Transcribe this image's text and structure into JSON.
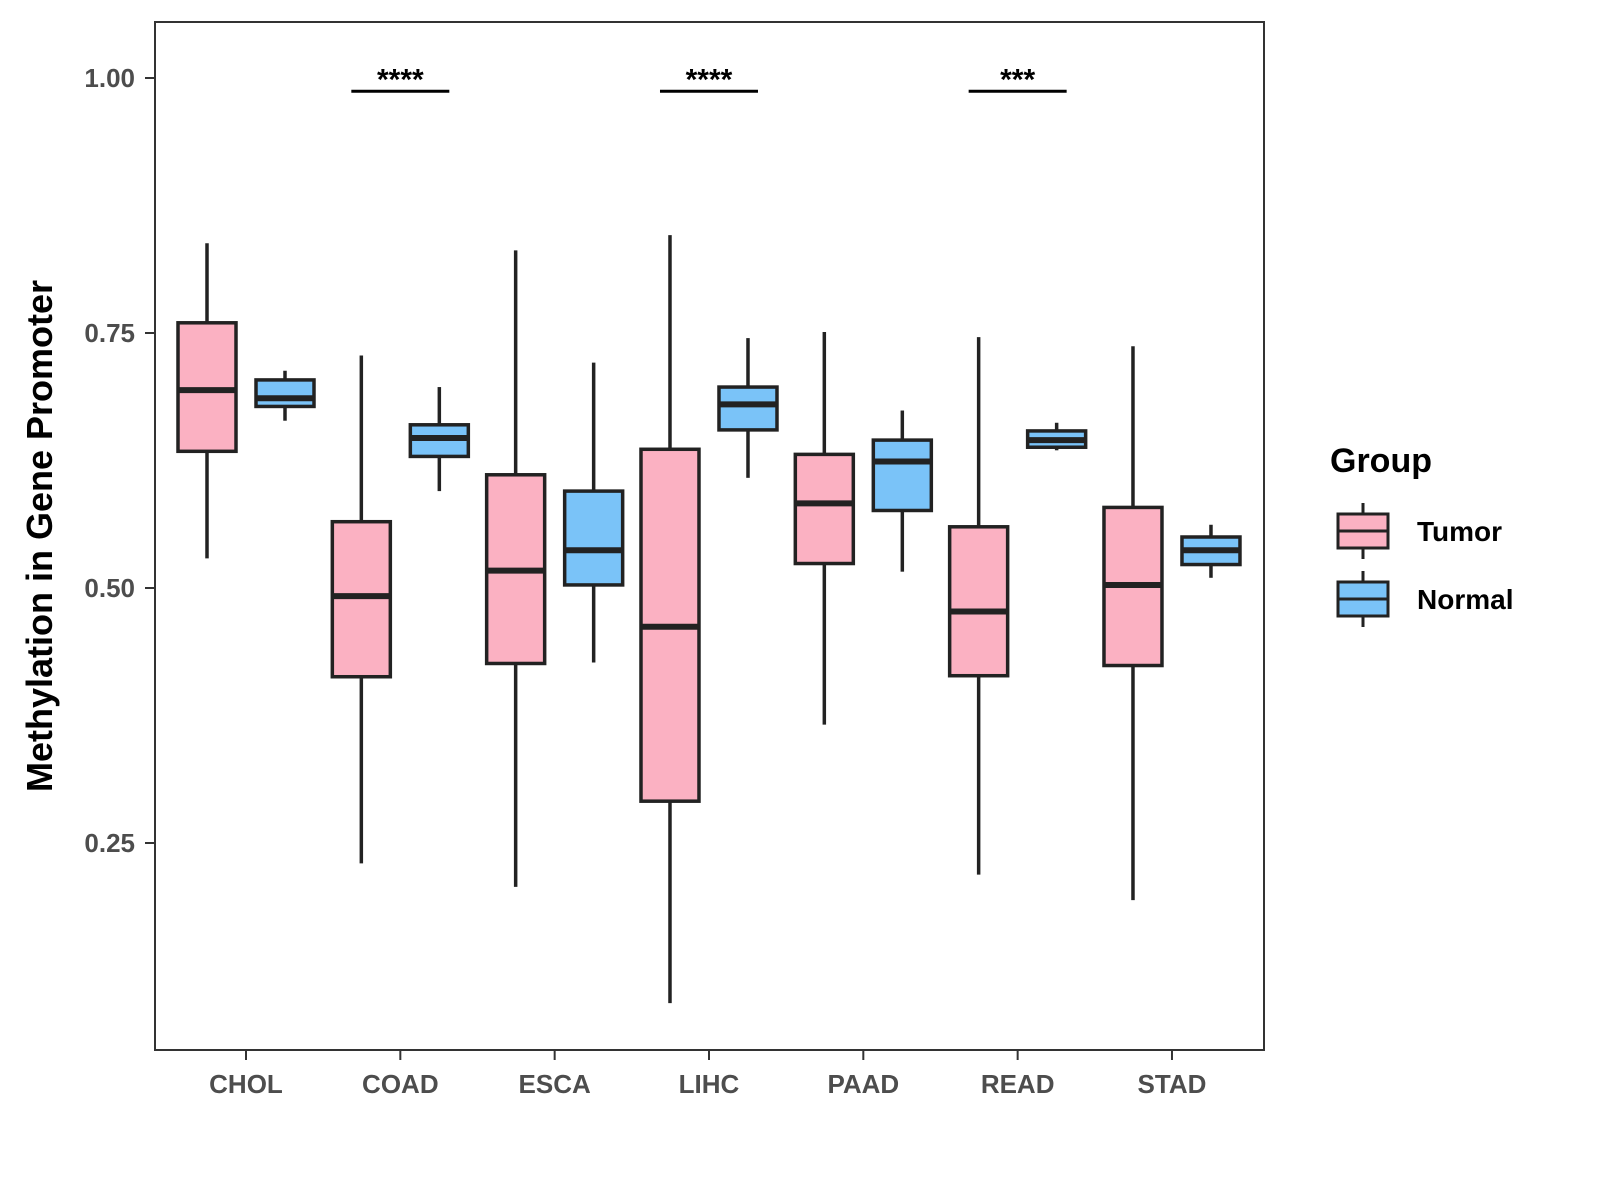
{
  "chart_data": {
    "type": "boxplot",
    "title": "",
    "xlabel": "",
    "ylabel": "Methylation in Gene Promoter",
    "ylim": [
      0.047,
      1.055
    ],
    "yticks": [
      "0.25",
      "0.50",
      "0.75",
      "1.00"
    ],
    "ytick_values": [
      0.25,
      0.5,
      0.75,
      1.0
    ],
    "grid": false,
    "categories": [
      "CHOL",
      "COAD",
      "ESCA",
      "LIHC",
      "PAAD",
      "READ",
      "STAD"
    ],
    "legend": {
      "title": "Group",
      "placement": "right",
      "entries": [
        "Tumor",
        "Normal"
      ]
    },
    "colors": {
      "Tumor": "#FBB1C2",
      "Normal": "#7AC3F8"
    },
    "series": [
      {
        "name": "Tumor",
        "boxes": [
          {
            "whisker_high": 0.838,
            "q3": 0.76,
            "median": 0.694,
            "q1": 0.634,
            "whisker_low": 0.529
          },
          {
            "whisker_high": 0.728,
            "q3": 0.565,
            "median": 0.492,
            "q1": 0.413,
            "whisker_low": 0.23
          },
          {
            "whisker_high": 0.831,
            "q3": 0.611,
            "median": 0.517,
            "q1": 0.426,
            "whisker_low": 0.207
          },
          {
            "whisker_high": 0.846,
            "q3": 0.636,
            "median": 0.462,
            "q1": 0.291,
            "whisker_low": 0.093
          },
          {
            "whisker_high": 0.751,
            "q3": 0.631,
            "median": 0.583,
            "q1": 0.524,
            "whisker_low": 0.366
          },
          {
            "whisker_high": 0.746,
            "q3": 0.56,
            "median": 0.477,
            "q1": 0.414,
            "whisker_low": 0.219
          },
          {
            "whisker_high": 0.737,
            "q3": 0.579,
            "median": 0.503,
            "q1": 0.424,
            "whisker_low": 0.194
          }
        ]
      },
      {
        "name": "Normal",
        "boxes": [
          {
            "whisker_high": 0.713,
            "q3": 0.704,
            "median": 0.686,
            "q1": 0.678,
            "whisker_low": 0.664
          },
          {
            "whisker_high": 0.697,
            "q3": 0.66,
            "median": 0.647,
            "q1": 0.629,
            "whisker_low": 0.595
          },
          {
            "whisker_high": 0.721,
            "q3": 0.595,
            "median": 0.537,
            "q1": 0.503,
            "whisker_low": 0.427
          },
          {
            "whisker_high": 0.745,
            "q3": 0.697,
            "median": 0.68,
            "q1": 0.655,
            "whisker_low": 0.608
          },
          {
            "whisker_high": 0.674,
            "q3": 0.645,
            "median": 0.624,
            "q1": 0.576,
            "whisker_low": 0.516
          },
          {
            "whisker_high": 0.662,
            "q3": 0.654,
            "median": 0.645,
            "q1": 0.638,
            "whisker_low": 0.635
          },
          {
            "whisker_high": 0.562,
            "q3": 0.55,
            "median": 0.537,
            "q1": 0.523,
            "whisker_low": 0.51
          }
        ]
      }
    ],
    "annotations": [
      {
        "category": "COAD",
        "label": "****",
        "y": 0.987
      },
      {
        "category": "LIHC",
        "label": "****",
        "y": 0.987
      },
      {
        "category": "READ",
        "label": "***",
        "y": 0.987
      }
    ]
  }
}
